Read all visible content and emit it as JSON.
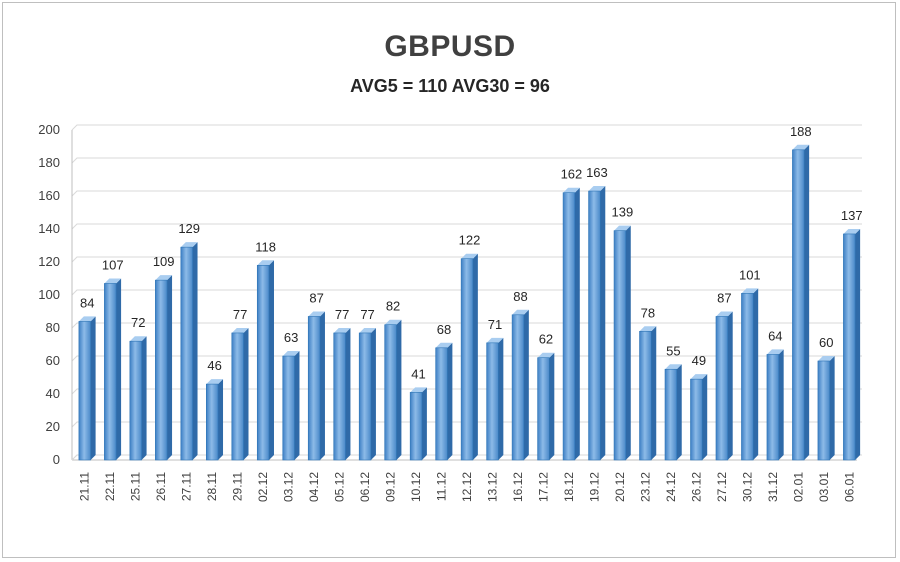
{
  "chart_data": {
    "type": "bar",
    "title": "GBPUSD",
    "subtitle": "AVG5 = 110 AVG30 = 96",
    "categories": [
      "21.11",
      "22.11",
      "25.11",
      "26.11",
      "27.11",
      "28.11",
      "29.11",
      "02.12",
      "03.12",
      "04.12",
      "05.12",
      "06.12",
      "09.12",
      "10.12",
      "11.12",
      "12.12",
      "13.12",
      "16.12",
      "17.12",
      "18.12",
      "19.12",
      "20.12",
      "23.12",
      "24.12",
      "26.12",
      "27.12",
      "30.12",
      "31.12",
      "02.01",
      "03.01",
      "06.01"
    ],
    "values": [
      84,
      107,
      72,
      109,
      129,
      46,
      77,
      118,
      63,
      87,
      77,
      77,
      82,
      41,
      68,
      122,
      71,
      88,
      62,
      162,
      163,
      139,
      78,
      55,
      49,
      87,
      101,
      64,
      188,
      60,
      137
    ],
    "ylim": [
      0,
      200
    ],
    "yticks": [
      0,
      20,
      40,
      60,
      80,
      100,
      120,
      140,
      160,
      180,
      200
    ],
    "grid": true,
    "legend": "none",
    "bar_color": "#5b9bd5",
    "bar_edge_color": "#2e75b6"
  }
}
